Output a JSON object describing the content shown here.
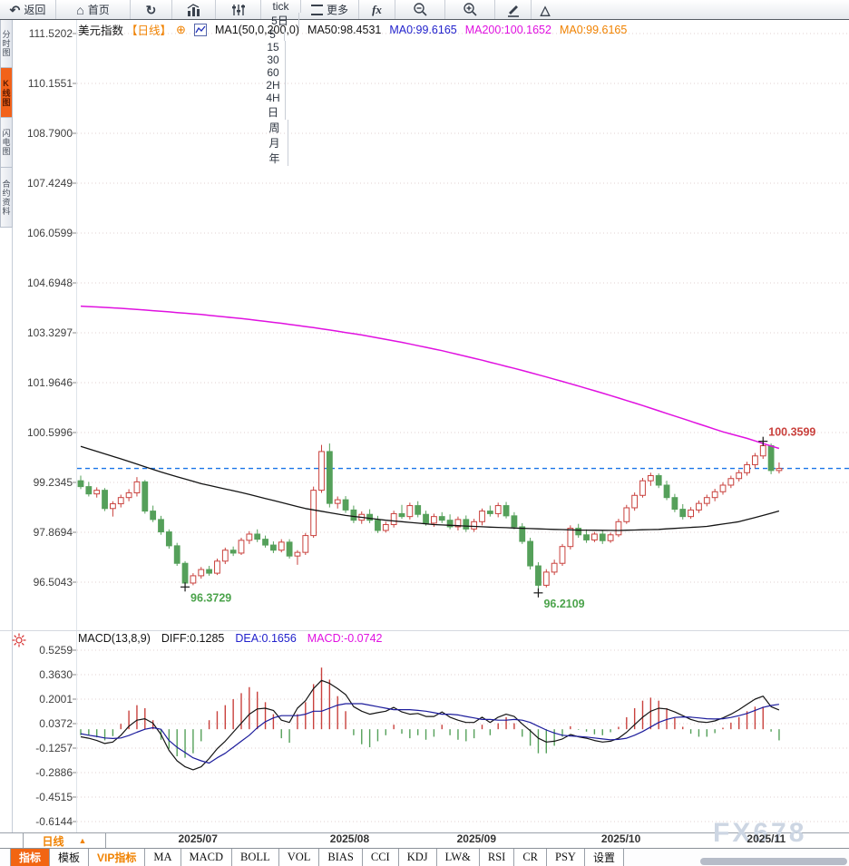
{
  "icons": {
    "back": "↶",
    "home": "⌂",
    "refresh": "↻",
    "circled_plus": "⊕",
    "triangle": "△",
    "dropdown_up": "▲"
  },
  "toolbar": {
    "back": "返回",
    "home": "首页",
    "more": "更多",
    "fx": "fx",
    "periods": [
      "tick",
      "5日",
      "5",
      "15",
      "30",
      "60",
      "2H",
      "4H",
      "日",
      "周",
      "月",
      "年"
    ]
  },
  "side_tabs": [
    {
      "name": "timeshare",
      "label": "分时图",
      "active": false
    },
    {
      "name": "kline",
      "label": "K线图",
      "active": true
    },
    {
      "name": "lightning",
      "label": "闪电图",
      "active": false
    },
    {
      "name": "contract-info",
      "label": "合约资料",
      "active": false
    }
  ],
  "title_bar": {
    "instrument": "美元指数",
    "period_tag": "【日线】",
    "ma_param": "MA1(50,0,200,0)",
    "ma50": "MA50:98.4531",
    "ma0_blue": "MA0:99.6165",
    "ma200": "MA200:100.1652",
    "ma0_orange": "MA0:99.6165"
  },
  "macd_bar": {
    "param": "MACD(13,8,9)",
    "diff": "DIFF:0.1285",
    "dea": "DEA:0.1656",
    "macd": "MACD:-0.0742"
  },
  "bottom": {
    "period_selector": "日线",
    "indicator_tabs": [
      {
        "label": "指标",
        "state": "active"
      },
      {
        "label": "模板"
      },
      {
        "label": "VIP指标",
        "state": "vip"
      },
      {
        "label": "MA",
        "latin": true
      },
      {
        "label": "MACD",
        "latin": true
      },
      {
        "label": "BOLL",
        "latin": true
      },
      {
        "label": "VOL",
        "latin": true
      },
      {
        "label": "BIAS",
        "latin": true
      },
      {
        "label": "CCI",
        "latin": true
      },
      {
        "label": "KDJ",
        "latin": true
      },
      {
        "label": "LW&",
        "latin": true
      },
      {
        "label": "RSI",
        "latin": true
      },
      {
        "label": "CR",
        "latin": true
      },
      {
        "label": "PSY",
        "latin": true
      },
      {
        "label": "设置"
      }
    ]
  },
  "watermark": "FX678",
  "colors": {
    "up": "#c9413d",
    "down": "#55a05a",
    "ma50": "#141414",
    "ma200": "#e011e0",
    "price_line": "#1874e8",
    "diff_line": "#141414",
    "dea_line": "#1c1c9c",
    "grid": "#e2d0d0",
    "axis_text": "#3f3f3f",
    "annotation_red": "#c9413d",
    "annotation_green": "#4ba34b",
    "watermark": "#cdd6e3",
    "accent_orange": "#f08200"
  },
  "chart_data": {
    "type": "candlestick+macd",
    "title": "美元指数 日线 (US Dollar Index, daily)",
    "y_axis_labels": [
      "111.5202",
      "110.1551",
      "108.7900",
      "107.4249",
      "106.0599",
      "104.6948",
      "103.3297",
      "101.9646",
      "100.5996",
      "99.2345",
      "97.8694",
      "96.5043"
    ],
    "macd_axis_labels": [
      "0.5259",
      "0.3630",
      "0.2001",
      "0.0372",
      "-0.1257",
      "-0.2886",
      "-0.4515",
      "-0.6144"
    ],
    "ylim_price": [
      96.5043,
      111.5202
    ],
    "ylim_macd": [
      -0.6144,
      0.5259
    ],
    "current_price": 99.6165,
    "x_month_ticks": [
      {
        "label": "2025/07",
        "i": 14.6
      },
      {
        "label": "2025/08",
        "i": 33.5
      },
      {
        "label": "2025/09",
        "i": 49.3
      },
      {
        "label": "2025/10",
        "i": 67.3
      },
      {
        "label": "2025/11",
        "i": 85.4
      }
    ],
    "annotations": [
      {
        "kind": "high",
        "index": 85,
        "price": 100.3599,
        "color": "red"
      },
      {
        "kind": "low",
        "index": 13,
        "price": 96.3729,
        "color": "green"
      },
      {
        "kind": "low",
        "index": 57,
        "price": 96.2109,
        "color": "green"
      }
    ],
    "candles": [
      [
        99.28,
        99.42,
        99.05,
        99.12
      ],
      [
        99.12,
        99.25,
        98.85,
        98.92
      ],
      [
        98.92,
        99.1,
        98.82,
        99.02
      ],
      [
        99.02,
        99.08,
        98.45,
        98.52
      ],
      [
        98.52,
        98.72,
        98.3,
        98.65
      ],
      [
        98.65,
        98.9,
        98.55,
        98.82
      ],
      [
        98.82,
        99.05,
        98.72,
        98.95
      ],
      [
        98.95,
        99.38,
        98.85,
        99.25
      ],
      [
        99.25,
        99.3,
        98.38,
        98.45
      ],
      [
        98.45,
        98.6,
        98.15,
        98.22
      ],
      [
        98.22,
        98.32,
        97.8,
        97.88
      ],
      [
        97.88,
        97.95,
        97.42,
        97.5
      ],
      [
        97.5,
        97.58,
        96.95,
        97.02
      ],
      [
        97.02,
        97.08,
        96.3729,
        96.48
      ],
      [
        96.48,
        96.75,
        96.42,
        96.68
      ],
      [
        96.68,
        96.92,
        96.6,
        96.85
      ],
      [
        96.85,
        96.95,
        96.68,
        96.75
      ],
      [
        96.75,
        97.15,
        96.7,
        97.08
      ],
      [
        97.08,
        97.45,
        97.0,
        97.38
      ],
      [
        97.38,
        97.48,
        97.22,
        97.3
      ],
      [
        97.3,
        97.72,
        97.25,
        97.65
      ],
      [
        97.65,
        97.9,
        97.55,
        97.82
      ],
      [
        97.82,
        97.95,
        97.6,
        97.68
      ],
      [
        97.68,
        97.78,
        97.45,
        97.52
      ],
      [
        97.52,
        97.62,
        97.3,
        97.38
      ],
      [
        97.38,
        97.68,
        97.32,
        97.6
      ],
      [
        97.6,
        97.68,
        97.15,
        97.22
      ],
      [
        97.22,
        97.38,
        96.98,
        97.32
      ],
      [
        97.32,
        97.85,
        97.25,
        97.78
      ],
      [
        97.78,
        99.12,
        97.72,
        99.02
      ],
      [
        99.02,
        100.26,
        98.95,
        100.08
      ],
      [
        100.08,
        100.3,
        98.55,
        98.66
      ],
      [
        98.66,
        98.85,
        98.52,
        98.76
      ],
      [
        98.76,
        98.86,
        98.4,
        98.48
      ],
      [
        98.48,
        98.6,
        98.12,
        98.2
      ],
      [
        98.2,
        98.44,
        98.1,
        98.36
      ],
      [
        98.36,
        98.5,
        98.12,
        98.2
      ],
      [
        98.2,
        98.32,
        97.85,
        97.92
      ],
      [
        97.92,
        98.16,
        97.86,
        98.08
      ],
      [
        98.08,
        98.46,
        98.0,
        98.38
      ],
      [
        98.38,
        98.62,
        98.24,
        98.3
      ],
      [
        98.3,
        98.68,
        98.22,
        98.6
      ],
      [
        98.6,
        98.72,
        98.28,
        98.36
      ],
      [
        98.36,
        98.46,
        98.05,
        98.12
      ],
      [
        98.12,
        98.38,
        98.02,
        98.3
      ],
      [
        98.3,
        98.42,
        98.12,
        98.2
      ],
      [
        98.2,
        98.36,
        97.95,
        98.02
      ],
      [
        98.02,
        98.3,
        97.92,
        98.22
      ],
      [
        98.22,
        98.33,
        97.88,
        97.96
      ],
      [
        97.96,
        98.24,
        97.88,
        98.16
      ],
      [
        98.16,
        98.52,
        98.06,
        98.45
      ],
      [
        98.45,
        98.6,
        98.3,
        98.38
      ],
      [
        98.38,
        98.68,
        98.28,
        98.6
      ],
      [
        98.6,
        98.7,
        98.25,
        98.32
      ],
      [
        98.32,
        98.42,
        97.95,
        98.02
      ],
      [
        98.02,
        98.12,
        97.55,
        97.62
      ],
      [
        97.62,
        97.72,
        96.85,
        96.95
      ],
      [
        96.95,
        97.05,
        96.2109,
        96.42
      ],
      [
        96.42,
        96.86,
        96.36,
        96.78
      ],
      [
        96.78,
        97.12,
        96.7,
        97.02
      ],
      [
        97.02,
        97.55,
        96.95,
        97.48
      ],
      [
        97.48,
        98.06,
        97.4,
        97.98
      ],
      [
        97.98,
        98.1,
        97.72,
        97.8
      ],
      [
        97.8,
        97.95,
        97.58,
        97.66
      ],
      [
        97.66,
        97.88,
        97.6,
        97.82
      ],
      [
        97.82,
        97.92,
        97.55,
        97.64
      ],
      [
        97.64,
        97.86,
        97.58,
        97.8
      ],
      [
        97.8,
        98.24,
        97.74,
        98.16
      ],
      [
        98.16,
        98.62,
        98.1,
        98.54
      ],
      [
        98.54,
        98.96,
        98.46,
        98.88
      ],
      [
        98.88,
        99.36,
        98.82,
        99.28
      ],
      [
        99.28,
        99.5,
        99.14,
        99.42
      ],
      [
        99.42,
        99.48,
        99.08,
        99.16
      ],
      [
        99.16,
        99.28,
        98.75,
        98.82
      ],
      [
        98.82,
        98.92,
        98.42,
        98.5
      ],
      [
        98.5,
        98.64,
        98.22,
        98.3
      ],
      [
        98.3,
        98.56,
        98.24,
        98.48
      ],
      [
        98.48,
        98.74,
        98.4,
        98.66
      ],
      [
        98.66,
        98.9,
        98.58,
        98.82
      ],
      [
        98.82,
        99.06,
        98.72,
        98.98
      ],
      [
        98.98,
        99.24,
        98.9,
        99.16
      ],
      [
        99.16,
        99.42,
        99.08,
        99.34
      ],
      [
        99.34,
        99.58,
        99.26,
        99.5
      ],
      [
        99.5,
        99.8,
        99.42,
        99.72
      ],
      [
        99.72,
        100.04,
        99.62,
        99.96
      ],
      [
        99.96,
        100.3599,
        99.88,
        100.24
      ],
      [
        100.24,
        100.3,
        99.46,
        99.56
      ],
      [
        99.56,
        99.78,
        99.48,
        99.6165
      ]
    ],
    "ma50_anchors": [
      [
        0,
        100.22
      ],
      [
        5,
        99.88
      ],
      [
        10,
        99.52
      ],
      [
        15,
        99.2
      ],
      [
        20,
        98.96
      ],
      [
        24,
        98.74
      ],
      [
        28,
        98.52
      ],
      [
        33,
        98.33
      ],
      [
        38,
        98.2
      ],
      [
        44,
        98.08
      ],
      [
        50,
        98.02
      ],
      [
        56,
        97.97
      ],
      [
        62,
        97.93
      ],
      [
        67,
        97.92
      ],
      [
        72,
        97.95
      ],
      [
        78,
        98.03
      ],
      [
        82,
        98.16
      ],
      [
        85,
        98.33
      ],
      [
        87,
        98.4531
      ]
    ],
    "ma200_anchors": [
      [
        0,
        104.06
      ],
      [
        5,
        104.0
      ],
      [
        10,
        103.92
      ],
      [
        15,
        103.83
      ],
      [
        20,
        103.72
      ],
      [
        25,
        103.59
      ],
      [
        30,
        103.44
      ],
      [
        35,
        103.27
      ],
      [
        40,
        103.07
      ],
      [
        45,
        102.84
      ],
      [
        50,
        102.58
      ],
      [
        55,
        102.3
      ],
      [
        60,
        102.0
      ],
      [
        65,
        101.68
      ],
      [
        70,
        101.34
      ],
      [
        75,
        100.98
      ],
      [
        80,
        100.62
      ],
      [
        83,
        100.44
      ],
      [
        85,
        100.3
      ],
      [
        87,
        100.1652
      ]
    ],
    "macd": {
      "diff": [
        -0.05,
        -0.06,
        -0.075,
        -0.095,
        -0.085,
        -0.04,
        0.02,
        0.06,
        0.07,
        0.04,
        -0.035,
        -0.14,
        -0.21,
        -0.25,
        -0.27,
        -0.25,
        -0.195,
        -0.13,
        -0.08,
        -0.02,
        0.04,
        0.1,
        0.135,
        0.14,
        0.125,
        0.06,
        0.045,
        0.14,
        0.19,
        0.27,
        0.325,
        0.305,
        0.27,
        0.23,
        0.15,
        0.12,
        0.1,
        0.11,
        0.12,
        0.145,
        0.115,
        0.1,
        0.105,
        0.085,
        0.085,
        0.115,
        0.08,
        0.06,
        0.045,
        0.045,
        0.08,
        0.045,
        0.08,
        0.1,
        0.085,
        0.035,
        -0.01,
        -0.06,
        -0.085,
        -0.08,
        -0.065,
        -0.035,
        -0.05,
        -0.06,
        -0.075,
        -0.085,
        -0.08,
        -0.06,
        -0.02,
        0.03,
        0.08,
        0.12,
        0.14,
        0.135,
        0.115,
        0.09,
        0.065,
        0.05,
        0.045,
        0.055,
        0.075,
        0.1,
        0.13,
        0.165,
        0.2,
        0.22,
        0.15,
        0.1285
      ],
      "dea": [
        -0.03,
        -0.04,
        -0.048,
        -0.058,
        -0.062,
        -0.058,
        -0.042,
        -0.02,
        0.0,
        0.01,
        0.0,
        -0.075,
        -0.12,
        -0.155,
        -0.19,
        -0.21,
        -0.225,
        -0.19,
        -0.16,
        -0.12,
        -0.08,
        -0.04,
        0.01,
        0.05,
        0.075,
        0.09,
        0.09,
        0.09,
        0.1,
        0.12,
        0.12,
        0.14,
        0.16,
        0.17,
        0.17,
        0.17,
        0.16,
        0.15,
        0.14,
        0.13,
        0.13,
        0.13,
        0.125,
        0.12,
        0.11,
        0.1,
        0.1,
        0.095,
        0.085,
        0.075,
        0.065,
        0.065,
        0.06,
        0.06,
        0.065,
        0.06,
        0.045,
        0.02,
        -0.005,
        -0.025,
        -0.04,
        -0.045,
        -0.048,
        -0.052,
        -0.058,
        -0.065,
        -0.07,
        -0.068,
        -0.06,
        -0.04,
        -0.015,
        0.015,
        0.045,
        0.065,
        0.078,
        0.082,
        0.08,
        0.075,
        0.07,
        0.068,
        0.07,
        0.078,
        0.09,
        0.105,
        0.125,
        0.145,
        0.158,
        0.1656
      ],
      "hist_rule": "hist = 2 * (diff - dea)"
    }
  }
}
